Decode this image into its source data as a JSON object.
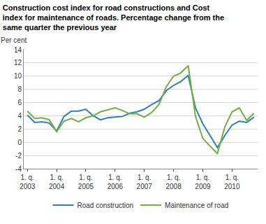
{
  "chart_data": {
    "type": "line",
    "title": "Construction cost index for road constructions and Cost index for maintenance of roads. Percentage change from the same quarter the previous year",
    "y_label": "Per cent",
    "categories": [
      "1. q. 2003",
      null,
      null,
      null,
      "1. q. 2004",
      null,
      null,
      null,
      "1. q. 2005",
      null,
      null,
      null,
      "1. q. 2006",
      null,
      null,
      null,
      "1. q. 2007",
      null,
      null,
      null,
      "1. q. 2008",
      null,
      null,
      null,
      "1. q. 2009",
      null,
      null,
      null,
      "1. q. 2010",
      null,
      null,
      null
    ],
    "series": [
      {
        "name": "Road construction",
        "color": "#2f7fbf",
        "values": [
          4.1,
          3.0,
          3.1,
          2.9,
          1.7,
          3.9,
          4.7,
          4.7,
          5.0,
          4.0,
          3.4,
          3.7,
          3.8,
          3.9,
          4.4,
          4.6,
          5.0,
          5.7,
          6.3,
          7.8,
          8.6,
          9.2,
          10.1,
          5.2,
          2.8,
          1.0,
          -0.8,
          1.0,
          2.6,
          3.2,
          3.0,
          3.8
        ]
      },
      {
        "name": "Maintenance of road",
        "color": "#6cb33f",
        "values": [
          4.7,
          3.6,
          3.7,
          3.4,
          1.6,
          3.2,
          3.6,
          3.1,
          3.7,
          4.0,
          4.6,
          4.9,
          5.2,
          4.8,
          4.3,
          4.3,
          3.8,
          4.5,
          5.7,
          8.4,
          10.0,
          10.5,
          11.6,
          3.9,
          0.6,
          -0.6,
          -1.7,
          2.3,
          4.6,
          5.2,
          3.3,
          4.4
        ]
      }
    ],
    "ylim": [
      -4,
      14
    ],
    "yticks": [
      -4,
      -2,
      0,
      2,
      4,
      6,
      8,
      10,
      12,
      14
    ],
    "grid": true,
    "legend": "bottom"
  }
}
